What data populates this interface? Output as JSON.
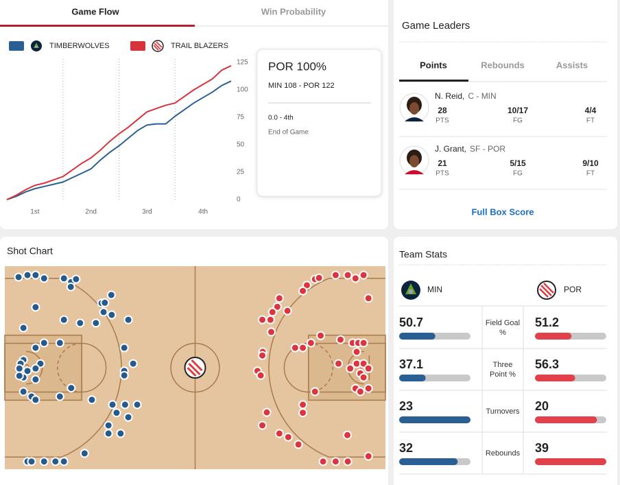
{
  "game_flow_tabs": [
    "Game Flow",
    "Win Probability"
  ],
  "win_card": {
    "headline": "POR 100%",
    "score": "MIN 108 - POR 122",
    "clock": "0.0 - 4th",
    "status": "End of Game"
  },
  "chart_data": [
    {
      "type": "line",
      "x": [
        0,
        2,
        4,
        6,
        8,
        10,
        12,
        14,
        16,
        18,
        20,
        22,
        24,
        26,
        28,
        30,
        32,
        34,
        36,
        38,
        40,
        42,
        44,
        46,
        48
      ],
      "series": [
        {
          "name": "TIMBERWOLVES",
          "color": "#2a5f93",
          "values": [
            0,
            3,
            7,
            10,
            12,
            14,
            16,
            20,
            24,
            28,
            36,
            43,
            49,
            56,
            63,
            68,
            69,
            69,
            76,
            82,
            88,
            93,
            98,
            104,
            108
          ]
        },
        {
          "name": "TRAIL BLAZERS",
          "color": "#d8323c",
          "values": [
            0,
            4,
            9,
            13,
            15,
            18,
            21,
            27,
            33,
            38,
            45,
            53,
            60,
            66,
            73,
            80,
            83,
            86,
            88,
            94,
            100,
            105,
            110,
            118,
            122
          ]
        }
      ],
      "xlim": [
        0,
        48
      ],
      "xticks": [
        {
          "value": 6,
          "label": "1st"
        },
        {
          "value": 18,
          "label": "2nd"
        },
        {
          "value": 30,
          "label": "3rd"
        },
        {
          "value": 42,
          "label": "4th"
        }
      ],
      "period_lines": [
        12,
        24,
        36
      ],
      "ylim": [
        0,
        125
      ],
      "yticks": [
        0,
        25,
        50,
        75,
        100,
        125
      ]
    },
    {
      "type": "scatter",
      "title": "Shot Chart",
      "xlim": [
        0,
        94
      ],
      "ylim": [
        0,
        50
      ],
      "series": [
        {
          "color": "#245a8c",
          "x": [
            3.4,
            5.6,
            7.6,
            9.7,
            14.6,
            16.4,
            17.6,
            16.3,
            26.3,
            7.6,
            23.9,
            24.7,
            14.6,
            18.6,
            22.5,
            24.4,
            26.4,
            30.5,
            4.6,
            9.7,
            7.6,
            13.6,
            29.5,
            31.7,
            29.5,
            29.5,
            8.8,
            7.6,
            7.6,
            4.6,
            3.9,
            3.6,
            4.6,
            5.6,
            3.6,
            16.4,
            13.6,
            4.6,
            6.6,
            7.6,
            21.5,
            26.6,
            29.7,
            32.7,
            27.6,
            30.5,
            25.6,
            25.6,
            28.6,
            19.7,
            5.6,
            6.6,
            9.7,
            12.5,
            14.6
          ],
          "y": [
            2.7,
            2.2,
            2.2,
            3.0,
            3.0,
            3.9,
            3.2,
            5.1,
            7.1,
            10.1,
            9.1,
            9.0,
            13.2,
            14.0,
            14.0,
            11.3,
            12.0,
            13.2,
            15.2,
            18.9,
            20.1,
            18.9,
            20.1,
            24.0,
            25.8,
            26.9,
            24.0,
            25.2,
            27.9,
            23.1,
            24.0,
            25.2,
            27.4,
            25.8,
            27.0,
            30.0,
            32.1,
            30.9,
            32.1,
            32.9,
            32.9,
            34.1,
            34.1,
            34.1,
            36.1,
            37.2,
            39.2,
            41.2,
            41.2,
            46.1,
            48.1,
            48.1,
            48.1,
            48.1,
            48.1
          ]
        },
        {
          "color": "#dc3540",
          "x": [
            76.6,
            77.6,
            81.7,
            84.7,
            86.6,
            88.6,
            74.6,
            73.6,
            67.8,
            67.3,
            66.1,
            69.8,
            63.6,
            65.6,
            65.8,
            89.8,
            78.0,
            75.6,
            73.6,
            71.7,
            82.9,
            85.9,
            87.3,
            88.6,
            63.7,
            63.6,
            62.4,
            63.2,
            82.4,
            85.3,
            86.9,
            88.6,
            89.8,
            87.8,
            88.6,
            86.6,
            87.8,
            89.8,
            76.6,
            73.6,
            73.6,
            64.7,
            63.6,
            67.8,
            70.0,
            72.5,
            84.6,
            89.8,
            78.6,
            81.7,
            84.7,
            86.9
          ],
          "y": [
            3.2,
            2.9,
            2.2,
            2.2,
            3.0,
            2.2,
            4.7,
            6.1,
            7.9,
            10.0,
            11.3,
            11.0,
            13.2,
            13.2,
            16.2,
            7.9,
            17.1,
            18.9,
            20.1,
            20.1,
            18.1,
            18.9,
            18.9,
            18.9,
            21.1,
            22.0,
            25.8,
            26.9,
            24.0,
            25.2,
            24.0,
            24.0,
            25.2,
            26.4,
            27.4,
            30.1,
            30.9,
            30.1,
            30.9,
            34.1,
            36.1,
            36.0,
            39.2,
            41.2,
            42.1,
            43.9,
            41.6,
            46.8,
            48.1,
            48.1,
            48.1,
            21.1
          ]
        }
      ]
    }
  ],
  "game_leaders": {
    "title": "Game Leaders",
    "tabs": [
      "Points",
      "Rebounds",
      "Assists"
    ],
    "players": [
      {
        "name": "N. Reid,",
        "position": "C - MIN",
        "stats": [
          {
            "value": "28",
            "label": "PTS"
          },
          {
            "value": "10/17",
            "label": "FG"
          },
          {
            "value": "4/4",
            "label": "FT"
          }
        ]
      },
      {
        "name": "J. Grant,",
        "position": "SF - POR",
        "stats": [
          {
            "value": "21",
            "label": "PTS"
          },
          {
            "value": "5/15",
            "label": "FG"
          },
          {
            "value": "9/10",
            "label": "FT"
          }
        ]
      }
    ],
    "link": "Full Box Score"
  },
  "team_stats": {
    "title": "Team Stats",
    "teams": [
      {
        "abbr": "MIN",
        "color": "#2a5f93"
      },
      {
        "abbr": "POR",
        "color": "#e0414a"
      }
    ],
    "rows": [
      {
        "label": "Field Goal %",
        "values": [
          50.7,
          51.2
        ],
        "xlim": [
          0,
          100
        ]
      },
      {
        "label": "Three Point %",
        "values": [
          37.1,
          56.3
        ],
        "xlim": [
          0,
          100
        ]
      },
      {
        "label": "Turnovers",
        "values": [
          23,
          20
        ]
      },
      {
        "label": "Rebounds",
        "values": [
          32,
          39
        ]
      }
    ]
  }
}
